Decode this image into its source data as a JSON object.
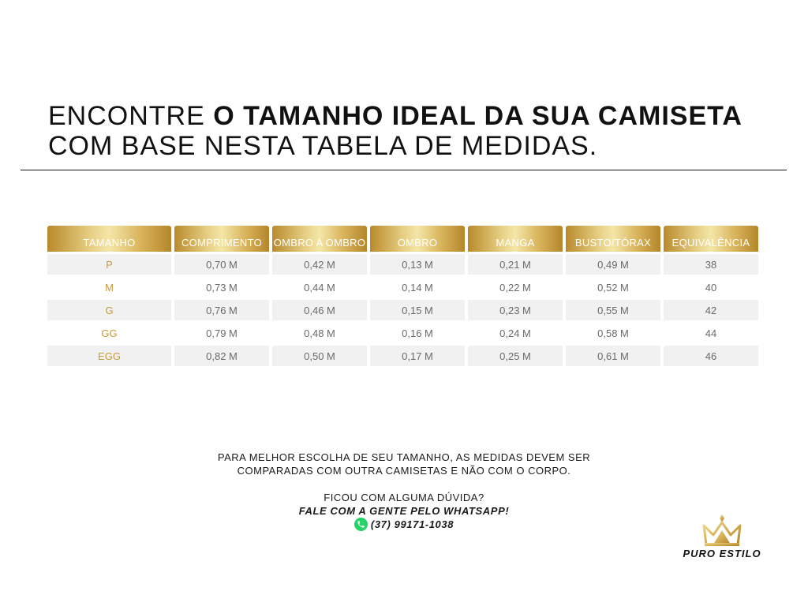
{
  "headline": {
    "part1": "ENCONTRE ",
    "part2": "O TAMANHO IDEAL DA SUA CAMISETA",
    "line2": "COM BASE NESTA TABELA DE MEDIDAS."
  },
  "table": {
    "headers": [
      "TAMANHO",
      "COMPRIMENTO",
      "OMBRO A OMBRO",
      "OMBRO",
      "MANGA",
      "BUSTO/TÓRAX",
      "EQUIVALÊNCIA"
    ],
    "rows": [
      [
        "P",
        "0,70 M",
        "0,42 M",
        "0,13 M",
        "0,21 M",
        "0,49 M",
        "38"
      ],
      [
        "M",
        "0,73 M",
        "0,44 M",
        "0,14 M",
        "0,22 M",
        "0,52 M",
        "40"
      ],
      [
        "G",
        "0,76 M",
        "0,46 M",
        "0,15 M",
        "0,23 M",
        "0,55 M",
        "42"
      ],
      [
        "GG",
        "0,79 M",
        "0,48 M",
        "0,16 M",
        "0,24 M",
        "0,58 M",
        "44"
      ],
      [
        "EGG",
        "0,82 M",
        "0,50 M",
        "0,17 M",
        "0,25 M",
        "0,61 M",
        "46"
      ]
    ]
  },
  "footer": {
    "note_line1": "PARA MELHOR ESCOLHA DE SEU TAMANHO, AS MEDIDAS DEVEM SER",
    "note_line2": "COMPARADAS COM OUTRA CAMISETAS E NÃO COM O CORPO.",
    "question": "FICOU COM ALGUMA DÚVIDA?",
    "cta": "FALE COM A GENTE PELO WHATSAPP!",
    "phone": "(37) 99171-1038",
    "phone_icon": "whatsapp-icon"
  },
  "brand": {
    "name": "PURO ESTILO",
    "logo_icon": "crown-icon",
    "gold": "#c69a37"
  }
}
